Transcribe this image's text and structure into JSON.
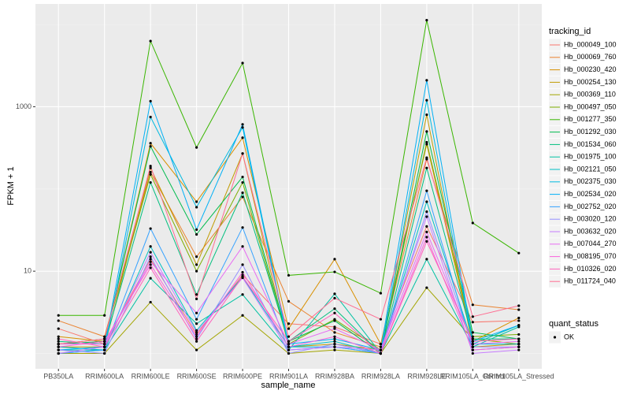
{
  "chart_data": {
    "type": "line",
    "x_label": "sample_name",
    "y_label": "FPKM + 1",
    "log_scale": true,
    "grid": true,
    "ylim": [
      0.65,
      17800
    ],
    "yticks": [
      10,
      1000
    ],
    "categories": [
      "PB350LA",
      "RRIM600LA",
      "RRIM600LE",
      "RRIM600SE",
      "RRIM600PE",
      "RRIM901LA",
      "RRIM928BA",
      "RRIM928LA",
      "RRIM928LE",
      "RRIM105LA_Control",
      "RRIM105LA_Stressed"
    ],
    "legend_title": "tracking_id",
    "series": [
      {
        "name": "Hb_000049_100",
        "color": "#F8766D",
        "values": [
          2.0,
          1.3,
          14,
          1.7,
          9.0,
          2.3,
          2.1,
          1.3,
          35,
          2.4,
          2.5
        ]
      },
      {
        "name": "Hb_000069_760",
        "color": "#EA8331",
        "values": [
          2.5,
          1.6,
          160,
          15,
          80,
          4.3,
          1.8,
          1.2,
          230,
          3.9,
          3.4
        ]
      },
      {
        "name": "Hb_000230_420",
        "color": "#D89000",
        "values": [
          1.6,
          1.4,
          360,
          70,
          420,
          2.0,
          14,
          1.3,
          350,
          1.4,
          2.7
        ]
      },
      {
        "name": "Hb_000254_130",
        "color": "#C09B00",
        "values": [
          1.2,
          1.2,
          180,
          12,
          270,
          1.2,
          1.3,
          1.1,
          800,
          1.2,
          1.3
        ]
      },
      {
        "name": "Hb_000369_110",
        "color": "#A3A500",
        "values": [
          1.0,
          1.0,
          4.2,
          1.1,
          2.9,
          1.0,
          1.1,
          1.0,
          6.3,
          1.5,
          1.3
        ]
      },
      {
        "name": "Hb_000497_050",
        "color": "#7CAE00",
        "values": [
          1.3,
          1.5,
          150,
          10,
          120,
          1.3,
          2.6,
          1.1,
          370,
          1.6,
          1.7
        ]
      },
      {
        "name": "Hb_001277_350",
        "color": "#39B600",
        "values": [
          2.9,
          2.9,
          6300,
          320,
          3400,
          8.9,
          9.8,
          5.4,
          11300,
          38.6,
          16.6
        ]
      },
      {
        "name": "Hb_001292_030",
        "color": "#00BB4E",
        "values": [
          1.3,
          1.4,
          330,
          28,
          140,
          1.4,
          2.5,
          1.0,
          500,
          1.8,
          1.5
        ]
      },
      {
        "name": "Hb_001534_060",
        "color": "#00BF7D",
        "values": [
          1.4,
          1.3,
          120,
          5.2,
          90,
          1.4,
          3.5,
          1.0,
          180,
          1.5,
          1.5
        ]
      },
      {
        "name": "Hb_001975_100",
        "color": "#00C1A3",
        "values": [
          1.1,
          1.1,
          8.2,
          2.3,
          5.2,
          1.1,
          5.3,
          1.0,
          14,
          1.2,
          2.1
        ]
      },
      {
        "name": "Hb_002121_050",
        "color": "#00BFC4",
        "values": [
          1.2,
          1.1,
          20,
          1.9,
          8.5,
          1.2,
          1.4,
          1.0,
          70,
          1.3,
          2.2
        ]
      },
      {
        "name": "Hb_002375_030",
        "color": "#00BAE0",
        "values": [
          1.0,
          1.1,
          750,
          60,
          560,
          1.2,
          1.2,
          1.0,
          1200,
          1.3,
          1.3
        ]
      },
      {
        "name": "Hb_002534_020",
        "color": "#00B0F6",
        "values": [
          1.1,
          1.2,
          1170,
          32,
          610,
          1.3,
          1.5,
          1.1,
          2100,
          1.4,
          2.2
        ]
      },
      {
        "name": "Hb_002752_020",
        "color": "#35A2FF",
        "values": [
          1.0,
          1.1,
          33,
          2.6,
          34,
          1.1,
          1.2,
          1.0,
          95,
          1.1,
          1.2
        ]
      },
      {
        "name": "Hb_003020_120",
        "color": "#9590FF",
        "values": [
          1.1,
          1.0,
          15,
          1.5,
          12,
          1.0,
          1.3,
          1.0,
          53,
          1.2,
          1.2
        ]
      },
      {
        "name": "Hb_003632_020",
        "color": "#C77CFF",
        "values": [
          1.0,
          1.2,
          17,
          1.8,
          8.3,
          1.1,
          1.2,
          1.1,
          46,
          1.0,
          1.1
        ]
      },
      {
        "name": "Hb_007044_270",
        "color": "#E76BF3",
        "values": [
          1.3,
          1.3,
          13,
          3.1,
          20,
          1.3,
          2.0,
          1.1,
          30,
          1.3,
          1.4
        ]
      },
      {
        "name": "Hb_008195_070",
        "color": "#FA62DB",
        "values": [
          1.2,
          1.4,
          12,
          1.6,
          9.7,
          1.2,
          1.6,
          1.0,
          26,
          1.1,
          1.2
        ]
      },
      {
        "name": "Hb_010326_020",
        "color": "#FF62BC",
        "values": [
          1.5,
          1.2,
          11,
          1.4,
          8.6,
          1.4,
          3.1,
          1.0,
          23,
          1.4,
          1.5
        ]
      },
      {
        "name": "Hb_011724_040",
        "color": "#FF6C91",
        "values": [
          1.3,
          1.5,
          190,
          4.6,
          270,
          1.6,
          4.7,
          2.6,
          240,
          2.8,
          3.8
        ]
      }
    ],
    "point_legend_title": "quant_status",
    "point_legend_label": "OK",
    "point_color": "#000000"
  }
}
